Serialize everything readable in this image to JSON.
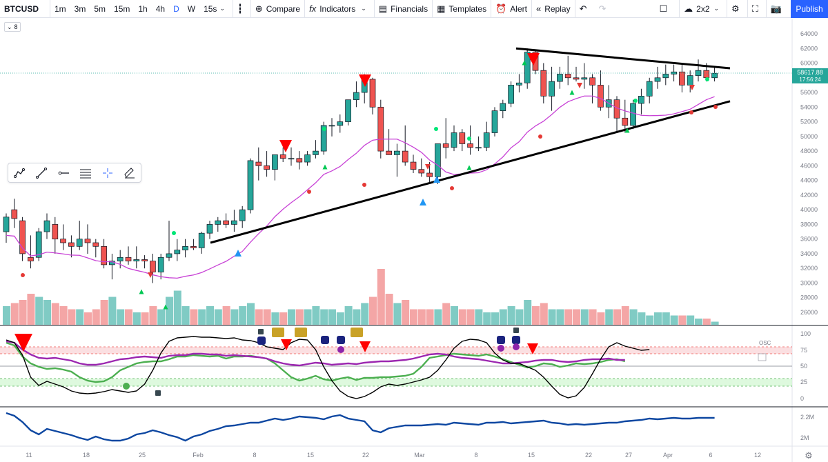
{
  "toolbar": {
    "symbol": "BTCUSD",
    "intervals": [
      "1m",
      "3m",
      "5m",
      "15m",
      "1h",
      "4h",
      "D",
      "W",
      "15s"
    ],
    "active_interval": "D",
    "compare": "Compare",
    "indicators": "Indicators",
    "financials": "Financials",
    "templates": "Templates",
    "alert": "Alert",
    "replay": "Replay",
    "layout": "2x2",
    "publish": "Publish"
  },
  "interval_badge": "8",
  "price_axis": {
    "ticks": [
      "64000",
      "62000",
      "60000",
      "58000",
      "56000",
      "54000",
      "52000",
      "50000",
      "48000",
      "46000",
      "44000",
      "42000",
      "40000",
      "38000",
      "36000",
      "34000",
      "32000",
      "30000",
      "28000",
      "26000"
    ],
    "last_price": "58617.88",
    "countdown": "17:56:24",
    "last_price_color": "#26a69a"
  },
  "osc_axis": {
    "ticks": [
      "100",
      "75",
      "50",
      "25",
      "0"
    ],
    "label": "OSC"
  },
  "vol_axis": {
    "ticks": [
      "2.2M",
      "2M"
    ]
  },
  "time_axis": [
    "11",
    "18",
    "25",
    "Feb",
    "8",
    "15",
    "22",
    "Mar",
    "8",
    "15",
    "22",
    "27",
    "Apr",
    "6",
    "12"
  ],
  "colors": {
    "up": "#26a69a",
    "down": "#ef5350",
    "ma": "#c842d6",
    "brand": "#2962ff",
    "osc_black": "#000000",
    "osc_green": "#4caf50",
    "osc_purple": "#9c27b0",
    "volume_line": "#0d47a1"
  },
  "icons": {
    "drawing_tools": [
      "brush-icon",
      "trend-line-icon",
      "ray-icon",
      "fib-icon",
      "crosshair-icon",
      "eraser-icon"
    ]
  }
}
